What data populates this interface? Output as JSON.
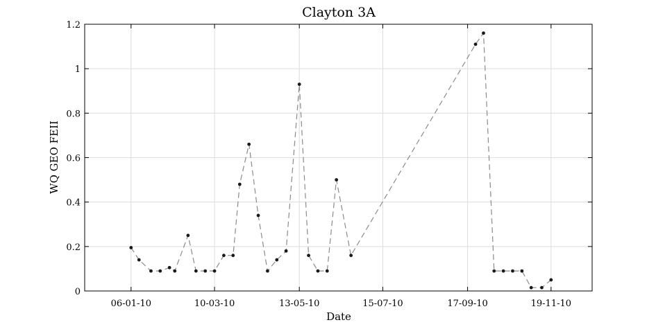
{
  "chart_data": {
    "type": "line",
    "title": "Clayton 3A",
    "xlabel": "Date",
    "ylabel": "WQ GEO FEII",
    "grid": true,
    "xlim": [
      "2009-12-02",
      "2010-12-20"
    ],
    "ylim": [
      0,
      1.2
    ],
    "x_ticks": [
      "2010-01-06",
      "2010-03-10",
      "2010-05-13",
      "2010-07-15",
      "2010-09-17",
      "2010-11-19"
    ],
    "x_tick_labels": [
      "06-01-10",
      "10-03-10",
      "13-05-10",
      "15-07-10",
      "17-09-10",
      "19-11-10"
    ],
    "y_ticks": [
      0,
      0.2,
      0.4,
      0.6,
      0.8,
      1,
      1.2
    ],
    "y_tick_labels": [
      "0",
      "0.2",
      "0.4",
      "0.6",
      "0.8",
      "1",
      "1.2"
    ],
    "series": [
      {
        "style": "dashed line with dot markers",
        "color": "#8a8a8a",
        "marker_color": "#1a1a1a",
        "points": [
          {
            "x": "2010-01-06",
            "y": 0.195
          },
          {
            "x": "2010-01-12",
            "y": 0.14
          },
          {
            "x": "2010-01-21",
            "y": 0.09
          },
          {
            "x": "2010-01-28",
            "y": 0.09
          },
          {
            "x": "2010-02-04",
            "y": 0.105
          },
          {
            "x": "2010-02-08",
            "y": 0.09
          },
          {
            "x": "2010-02-18",
            "y": 0.25
          },
          {
            "x": "2010-02-24",
            "y": 0.09
          },
          {
            "x": "2010-03-03",
            "y": 0.09
          },
          {
            "x": "2010-03-10",
            "y": 0.09
          },
          {
            "x": "2010-03-17",
            "y": 0.16
          },
          {
            "x": "2010-03-24",
            "y": 0.16
          },
          {
            "x": "2010-03-29",
            "y": 0.48
          },
          {
            "x": "2010-04-05",
            "y": 0.66
          },
          {
            "x": "2010-04-12",
            "y": 0.34
          },
          {
            "x": "2010-04-19",
            "y": 0.09
          },
          {
            "x": "2010-04-26",
            "y": 0.14
          },
          {
            "x": "2010-05-03",
            "y": 0.18
          },
          {
            "x": "2010-05-13",
            "y": 0.93
          },
          {
            "x": "2010-05-20",
            "y": 0.16
          },
          {
            "x": "2010-05-27",
            "y": 0.09
          },
          {
            "x": "2010-06-03",
            "y": 0.09
          },
          {
            "x": "2010-06-10",
            "y": 0.5
          },
          {
            "x": "2010-06-21",
            "y": 0.16
          },
          {
            "x": "2010-09-23",
            "y": 1.11
          },
          {
            "x": "2010-09-29",
            "y": 1.16
          },
          {
            "x": "2010-10-07",
            "y": 0.09
          },
          {
            "x": "2010-10-14",
            "y": 0.09
          },
          {
            "x": "2010-10-21",
            "y": 0.09
          },
          {
            "x": "2010-10-28",
            "y": 0.09
          },
          {
            "x": "2010-11-04",
            "y": 0.015
          },
          {
            "x": "2010-11-12",
            "y": 0.015
          },
          {
            "x": "2010-11-19",
            "y": 0.05
          }
        ]
      }
    ]
  }
}
